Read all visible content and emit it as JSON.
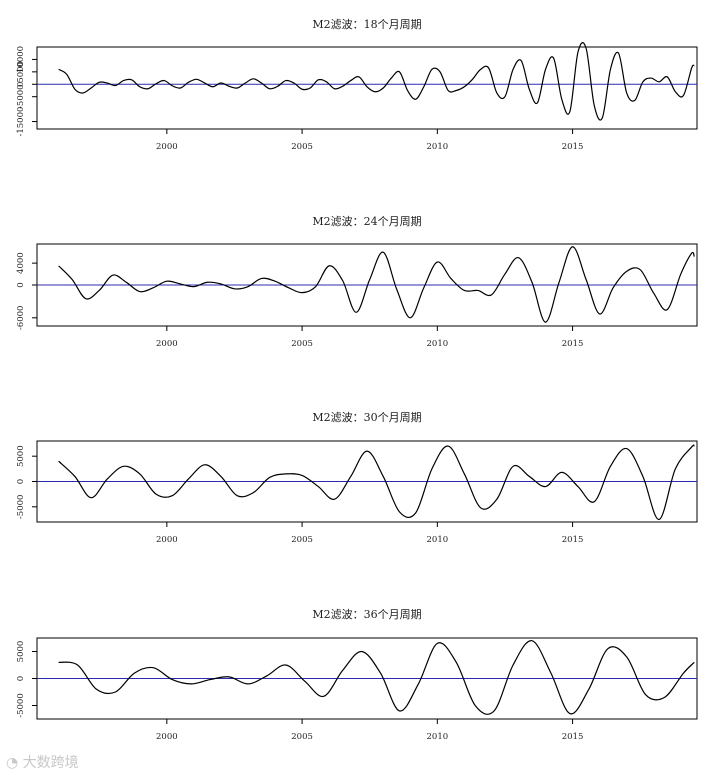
{
  "chart_data": [
    {
      "type": "line",
      "title": "M2滤波：18个月周期",
      "xlabel": "",
      "ylabel": "",
      "xlim": [
        1995.2,
        2019.6
      ],
      "ylim": [
        -18000,
        15000
      ],
      "xticks": [
        2000,
        2005,
        2010,
        2015
      ],
      "yticks": [
        10000,
        5000,
        0,
        -5000,
        -15000
      ],
      "ytick_labels": [
        "10000",
        "5000",
        "0",
        "-5000",
        "-15000"
      ],
      "reference_line": {
        "y": 0,
        "color": "#2b2bb0"
      },
      "series_color": "#000000",
      "points": [
        [
          1996.0,
          6000
        ],
        [
          1996.3,
          4000
        ],
        [
          1996.6,
          -2000
        ],
        [
          1996.9,
          -3500
        ],
        [
          1997.2,
          -1500
        ],
        [
          1997.5,
          800
        ],
        [
          1997.8,
          500
        ],
        [
          1998.1,
          -500
        ],
        [
          1998.4,
          1500
        ],
        [
          1998.7,
          1800
        ],
        [
          1999.0,
          -1000
        ],
        [
          1999.3,
          -1800
        ],
        [
          1999.6,
          200
        ],
        [
          1999.9,
          1500
        ],
        [
          2000.2,
          -600
        ],
        [
          2000.5,
          -1500
        ],
        [
          2000.8,
          800
        ],
        [
          2001.1,
          2000
        ],
        [
          2001.4,
          500
        ],
        [
          2001.7,
          -1000
        ],
        [
          2002.0,
          500
        ],
        [
          2002.3,
          -800
        ],
        [
          2002.6,
          -1500
        ],
        [
          2002.9,
          500
        ],
        [
          2003.2,
          2200
        ],
        [
          2003.5,
          500
        ],
        [
          2003.8,
          -1800
        ],
        [
          2004.1,
          -800
        ],
        [
          2004.4,
          1500
        ],
        [
          2004.7,
          500
        ],
        [
          2005.0,
          -2000
        ],
        [
          2005.3,
          -1500
        ],
        [
          2005.6,
          1800
        ],
        [
          2005.9,
          1000
        ],
        [
          2006.2,
          -1800
        ],
        [
          2006.5,
          -800
        ],
        [
          2006.8,
          1500
        ],
        [
          2007.1,
          3000
        ],
        [
          2007.4,
          -1000
        ],
        [
          2007.7,
          -3000
        ],
        [
          2008.0,
          -1500
        ],
        [
          2008.3,
          2500
        ],
        [
          2008.6,
          5000
        ],
        [
          2008.9,
          -2500
        ],
        [
          2009.2,
          -6000
        ],
        [
          2009.5,
          -1000
        ],
        [
          2009.8,
          6000
        ],
        [
          2010.1,
          5000
        ],
        [
          2010.4,
          -2500
        ],
        [
          2010.7,
          -2500
        ],
        [
          2011.0,
          -1000
        ],
        [
          2011.3,
          2000
        ],
        [
          2011.6,
          6000
        ],
        [
          2011.9,
          6500
        ],
        [
          2012.2,
          -3500
        ],
        [
          2012.5,
          -5000
        ],
        [
          2012.8,
          6000
        ],
        [
          2013.1,
          9500
        ],
        [
          2013.4,
          -2000
        ],
        [
          2013.7,
          -7500
        ],
        [
          2014.0,
          6000
        ],
        [
          2014.3,
          10500
        ],
        [
          2014.6,
          -6000
        ],
        [
          2014.9,
          -11000
        ],
        [
          2015.2,
          13000
        ],
        [
          2015.5,
          14500
        ],
        [
          2015.8,
          -8500
        ],
        [
          2016.1,
          -13500
        ],
        [
          2016.4,
          6000
        ],
        [
          2016.7,
          12500
        ],
        [
          2017.0,
          -3500
        ],
        [
          2017.3,
          -6500
        ],
        [
          2017.6,
          1000
        ],
        [
          2017.9,
          2500
        ],
        [
          2018.2,
          1000
        ],
        [
          2018.5,
          3000
        ],
        [
          2018.8,
          -3000
        ],
        [
          2019.1,
          -4500
        ],
        [
          2019.4,
          6500
        ],
        [
          2019.5,
          7500
        ]
      ],
      "data_label_note": "",
      "xtick_labels": [
        "2000",
        "2005",
        "2010",
        "2015"
      ]
    },
    {
      "type": "line",
      "title": "M2滤波：24个月周期",
      "xlabel": "",
      "ylabel": "",
      "xlim": [
        1995.2,
        2019.6
      ],
      "ylim": [
        -7500,
        7500
      ],
      "xticks": [
        2000,
        2005,
        2010,
        2015
      ],
      "xtick_labels": [
        "2000",
        "2005",
        "2010",
        "2015"
      ],
      "yticks": [
        4000,
        0,
        -6000
      ],
      "ytick_labels": [
        "4000",
        "0",
        "-6000"
      ],
      "reference_line": {
        "y": 0,
        "color": "#2b2bb0"
      },
      "series_color": "#000000",
      "points": [
        [
          1996.0,
          3500
        ],
        [
          1996.5,
          1000
        ],
        [
          1997.0,
          -2500
        ],
        [
          1997.5,
          -1000
        ],
        [
          1998.0,
          1800
        ],
        [
          1998.5,
          500
        ],
        [
          1999.0,
          -1200
        ],
        [
          1999.5,
          -500
        ],
        [
          2000.0,
          700
        ],
        [
          2000.5,
          200
        ],
        [
          2001.0,
          -300
        ],
        [
          2001.5,
          500
        ],
        [
          2002.0,
          200
        ],
        [
          2002.5,
          -700
        ],
        [
          2003.0,
          -300
        ],
        [
          2003.5,
          1200
        ],
        [
          2004.0,
          700
        ],
        [
          2004.5,
          -500
        ],
        [
          2005.0,
          -1400
        ],
        [
          2005.5,
          -300
        ],
        [
          2006.0,
          3500
        ],
        [
          2006.5,
          800
        ],
        [
          2007.0,
          -5000
        ],
        [
          2007.5,
          1000
        ],
        [
          2008.0,
          6000
        ],
        [
          2008.5,
          -800
        ],
        [
          2009.0,
          -6000
        ],
        [
          2009.5,
          -500
        ],
        [
          2010.0,
          4200
        ],
        [
          2010.5,
          1200
        ],
        [
          2011.0,
          -1000
        ],
        [
          2011.5,
          -1000
        ],
        [
          2012.0,
          -1800
        ],
        [
          2012.5,
          2000
        ],
        [
          2013.0,
          5000
        ],
        [
          2013.5,
          500
        ],
        [
          2014.0,
          -6800
        ],
        [
          2014.5,
          500
        ],
        [
          2015.0,
          7000
        ],
        [
          2015.5,
          1000
        ],
        [
          2016.0,
          -5300
        ],
        [
          2016.5,
          -500
        ],
        [
          2017.0,
          2500
        ],
        [
          2017.5,
          2800
        ],
        [
          2018.0,
          -1500
        ],
        [
          2018.5,
          -4500
        ],
        [
          2019.0,
          2000
        ],
        [
          2019.4,
          5800
        ],
        [
          2019.5,
          5200
        ]
      ]
    },
    {
      "type": "line",
      "title": "M2滤波：30个月周期",
      "xlabel": "",
      "ylabel": "",
      "xlim": [
        1995.2,
        2019.6
      ],
      "ylim": [
        -8000,
        8000
      ],
      "xticks": [
        2000,
        2005,
        2010,
        2015
      ],
      "xtick_labels": [
        "2000",
        "2005",
        "2010",
        "2015"
      ],
      "yticks": [
        5000,
        0,
        -5000
      ],
      "ytick_labels": [
        "5000",
        "0",
        "-5000"
      ],
      "reference_line": {
        "y": 0,
        "color": "#2b2bb0"
      },
      "series_color": "#000000",
      "points": [
        [
          1996.0,
          4000
        ],
        [
          1996.6,
          1000
        ],
        [
          1997.2,
          -3200
        ],
        [
          1997.8,
          500
        ],
        [
          1998.4,
          3000
        ],
        [
          1999.0,
          1500
        ],
        [
          1999.6,
          -2500
        ],
        [
          2000.2,
          -2800
        ],
        [
          2000.8,
          500
        ],
        [
          2001.4,
          3300
        ],
        [
          2002.0,
          1000
        ],
        [
          2002.6,
          -2800
        ],
        [
          2003.2,
          -2200
        ],
        [
          2003.8,
          800
        ],
        [
          2004.4,
          1500
        ],
        [
          2005.0,
          1200
        ],
        [
          2005.6,
          -1000
        ],
        [
          2006.2,
          -3500
        ],
        [
          2006.8,
          1000
        ],
        [
          2007.4,
          6000
        ],
        [
          2008.0,
          1000
        ],
        [
          2008.6,
          -6000
        ],
        [
          2009.2,
          -6200
        ],
        [
          2009.8,
          2500
        ],
        [
          2010.4,
          7000
        ],
        [
          2011.0,
          1500
        ],
        [
          2011.6,
          -5200
        ],
        [
          2012.2,
          -3500
        ],
        [
          2012.8,
          3000
        ],
        [
          2013.4,
          1000
        ],
        [
          2014.0,
          -1000
        ],
        [
          2014.6,
          1800
        ],
        [
          2015.2,
          -1000
        ],
        [
          2015.8,
          -4000
        ],
        [
          2016.4,
          3000
        ],
        [
          2017.0,
          6500
        ],
        [
          2017.6,
          1000
        ],
        [
          2018.2,
          -7500
        ],
        [
          2018.8,
          2500
        ],
        [
          2019.4,
          6800
        ],
        [
          2019.5,
          7000
        ]
      ]
    },
    {
      "type": "line",
      "title": "M2滤波：36个月周期",
      "xlabel": "",
      "ylabel": "",
      "xlim": [
        1995.2,
        2019.6
      ],
      "ylim": [
        -7500,
        7500
      ],
      "xticks": [
        2000,
        2005,
        2010,
        2015
      ],
      "xtick_labels": [
        "2000",
        "2005",
        "2010",
        "2015"
      ],
      "yticks": [
        5000,
        0,
        -5000
      ],
      "ytick_labels": [
        "5000",
        "0",
        "-5000"
      ],
      "reference_line": {
        "y": 0,
        "color": "#2b2bb0"
      },
      "series_color": "#000000",
      "points": [
        [
          1996.0,
          3000
        ],
        [
          1996.7,
          2500
        ],
        [
          1997.4,
          -2000
        ],
        [
          1998.1,
          -2500
        ],
        [
          1998.8,
          1000
        ],
        [
          1999.5,
          2000
        ],
        [
          2000.2,
          -200
        ],
        [
          2000.9,
          -1000
        ],
        [
          2001.6,
          -200
        ],
        [
          2002.3,
          300
        ],
        [
          2003.0,
          -1000
        ],
        [
          2003.7,
          500
        ],
        [
          2004.4,
          2500
        ],
        [
          2005.1,
          -500
        ],
        [
          2005.8,
          -3300
        ],
        [
          2006.5,
          1500
        ],
        [
          2007.2,
          5000
        ],
        [
          2007.9,
          1000
        ],
        [
          2008.6,
          -6000
        ],
        [
          2009.3,
          -1000
        ],
        [
          2010.0,
          6500
        ],
        [
          2010.7,
          3000
        ],
        [
          2011.4,
          -5000
        ],
        [
          2012.1,
          -6000
        ],
        [
          2012.8,
          2500
        ],
        [
          2013.5,
          7000
        ],
        [
          2014.2,
          1000
        ],
        [
          2014.9,
          -6500
        ],
        [
          2015.6,
          -2000
        ],
        [
          2016.3,
          5500
        ],
        [
          2017.0,
          4000
        ],
        [
          2017.7,
          -3000
        ],
        [
          2018.4,
          -3500
        ],
        [
          2019.1,
          1000
        ],
        [
          2019.5,
          3000
        ]
      ]
    }
  ],
  "watermark": "大数跨境"
}
